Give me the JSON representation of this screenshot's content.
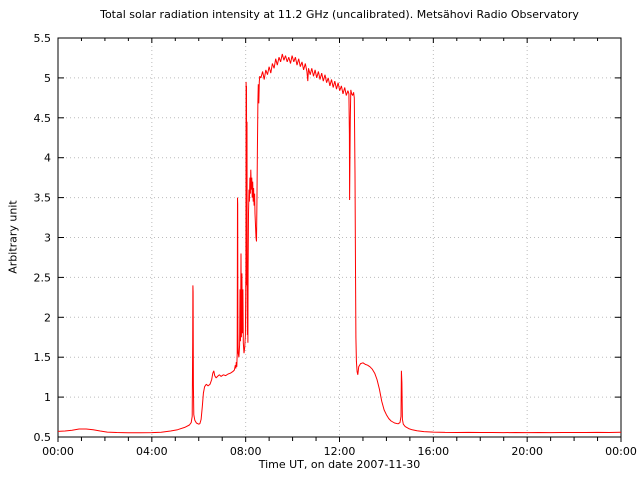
{
  "chart_data": {
    "type": "line",
    "title": "Total solar radiation intensity at 11.2 GHz (uncalibrated). Metsähovi Radio Observatory",
    "xlabel": "Time UT, on date 2007-11-30",
    "ylabel": "Arbitrary unit",
    "series_color": "#ff0000",
    "grid_color": "#bcbcbc",
    "grid": "dotted lines at major ticks, both axes",
    "legend": "none",
    "xlim_hours": [
      0,
      24
    ],
    "ylim": [
      0.5,
      5.5
    ],
    "x_major_ticks_hours": [
      0,
      4,
      8,
      12,
      16,
      20,
      24
    ],
    "x_tick_labels": [
      "00:00",
      "04:00",
      "08:00",
      "12:00",
      "16:00",
      "20:00",
      "00:00"
    ],
    "x_minor_step_hours": 1,
    "y_major_ticks": [
      0.5,
      1,
      1.5,
      2,
      2.5,
      3,
      3.5,
      4,
      4.5,
      5,
      5.5
    ],
    "y_tick_labels": [
      "0.5",
      "1",
      "1.5",
      "2",
      "2.5",
      "3",
      "3.5",
      "4",
      "4.5",
      "5",
      "5.5"
    ],
    "points_t_v": [
      [
        0,
        0.57
      ],
      [
        0.3,
        0.575
      ],
      [
        0.6,
        0.585
      ],
      [
        0.9,
        0.6
      ],
      [
        1.2,
        0.6
      ],
      [
        1.5,
        0.59
      ],
      [
        1.8,
        0.575
      ],
      [
        2.1,
        0.562
      ],
      [
        2.5,
        0.556
      ],
      [
        3.0,
        0.553
      ],
      [
        3.5,
        0.553
      ],
      [
        4.0,
        0.555
      ],
      [
        4.4,
        0.56
      ],
      [
        4.8,
        0.575
      ],
      [
        5.1,
        0.592
      ],
      [
        5.4,
        0.62
      ],
      [
        5.6,
        0.65
      ],
      [
        5.68,
        0.68
      ],
      [
        5.72,
        0.76
      ],
      [
        5.74,
        1.7
      ],
      [
        5.75,
        2.4
      ],
      [
        5.76,
        2.32
      ],
      [
        5.77,
        1.15
      ],
      [
        5.79,
        0.78
      ],
      [
        5.83,
        0.71
      ],
      [
        5.9,
        0.675
      ],
      [
        6.0,
        0.66
      ],
      [
        6.05,
        0.668
      ],
      [
        6.1,
        0.72
      ],
      [
        6.15,
        0.88
      ],
      [
        6.2,
        1.05
      ],
      [
        6.25,
        1.13
      ],
      [
        6.32,
        1.16
      ],
      [
        6.4,
        1.14
      ],
      [
        6.48,
        1.16
      ],
      [
        6.55,
        1.22
      ],
      [
        6.6,
        1.3
      ],
      [
        6.64,
        1.33
      ],
      [
        6.68,
        1.27
      ],
      [
        6.74,
        1.24
      ],
      [
        6.8,
        1.26
      ],
      [
        6.88,
        1.28
      ],
      [
        6.95,
        1.26
      ],
      [
        7.05,
        1.28
      ],
      [
        7.15,
        1.27
      ],
      [
        7.25,
        1.29
      ],
      [
        7.35,
        1.3
      ],
      [
        7.45,
        1.32
      ],
      [
        7.52,
        1.34
      ],
      [
        7.56,
        1.4
      ],
      [
        7.58,
        1.36
      ],
      [
        7.6,
        1.44
      ],
      [
        7.62,
        1.38
      ],
      [
        7.64,
        1.55
      ],
      [
        7.65,
        3.5
      ],
      [
        7.66,
        3.42
      ],
      [
        7.67,
        1.8
      ],
      [
        7.68,
        1.55
      ],
      [
        7.71,
        1.5
      ],
      [
        7.74,
        1.65
      ],
      [
        7.76,
        2.35
      ],
      [
        7.78,
        1.7
      ],
      [
        7.8,
        2.8
      ],
      [
        7.82,
        1.75
      ],
      [
        7.84,
        2.55
      ],
      [
        7.86,
        1.8
      ],
      [
        7.88,
        2.35
      ],
      [
        7.9,
        1.68
      ],
      [
        7.93,
        1.55
      ],
      [
        7.96,
        1.62
      ],
      [
        7.99,
        1.78
      ],
      [
        8.01,
        2.6
      ],
      [
        8.02,
        4.95
      ],
      [
        8.03,
        4.2
      ],
      [
        8.035,
        4.9
      ],
      [
        8.045,
        2.4
      ],
      [
        8.055,
        4.45
      ],
      [
        8.065,
        2.1
      ],
      [
        8.075,
        1.78
      ],
      [
        8.085,
        2.3
      ],
      [
        8.095,
        1.68
      ],
      [
        8.105,
        2.6
      ],
      [
        8.12,
        3.3
      ],
      [
        8.14,
        3.6
      ],
      [
        8.16,
        3.45
      ],
      [
        8.18,
        3.75
      ],
      [
        8.2,
        3.55
      ],
      [
        8.22,
        3.85
      ],
      [
        8.24,
        3.6
      ],
      [
        8.26,
        3.75
      ],
      [
        8.28,
        3.5
      ],
      [
        8.3,
        3.7
      ],
      [
        8.32,
        3.45
      ],
      [
        8.34,
        3.62
      ],
      [
        8.36,
        3.4
      ],
      [
        8.38,
        3.55
      ],
      [
        8.4,
        3.3
      ],
      [
        8.42,
        3.15
      ],
      [
        8.44,
        3.0
      ],
      [
        8.46,
        2.95
      ],
      [
        8.48,
        3.4
      ],
      [
        8.5,
        4.1
      ],
      [
        8.52,
        4.7
      ],
      [
        8.54,
        4.92
      ],
      [
        8.56,
        4.68
      ],
      [
        8.58,
        4.95
      ],
      [
        8.6,
        5.02
      ],
      [
        8.65,
        5.0
      ],
      [
        8.72,
        5.08
      ],
      [
        8.79,
        4.98
      ],
      [
        8.86,
        5.1
      ],
      [
        8.93,
        5.04
      ],
      [
        9.0,
        5.14
      ],
      [
        9.07,
        5.06
      ],
      [
        9.14,
        5.18
      ],
      [
        9.21,
        5.12
      ],
      [
        9.28,
        5.24
      ],
      [
        9.35,
        5.16
      ],
      [
        9.42,
        5.26
      ],
      [
        9.49,
        5.2
      ],
      [
        9.56,
        5.3
      ],
      [
        9.63,
        5.22
      ],
      [
        9.7,
        5.28
      ],
      [
        9.77,
        5.2
      ],
      [
        9.84,
        5.26
      ],
      [
        9.91,
        5.18
      ],
      [
        9.98,
        5.28
      ],
      [
        10.05,
        5.2
      ],
      [
        10.12,
        5.26
      ],
      [
        10.19,
        5.16
      ],
      [
        10.26,
        5.24
      ],
      [
        10.33,
        5.14
      ],
      [
        10.4,
        5.2
      ],
      [
        10.47,
        5.1
      ],
      [
        10.54,
        5.18
      ],
      [
        10.61,
        5.08
      ],
      [
        10.65,
        4.96
      ],
      [
        10.68,
        5.12
      ],
      [
        10.75,
        5.04
      ],
      [
        10.82,
        5.12
      ],
      [
        10.89,
        5.02
      ],
      [
        10.96,
        5.1
      ],
      [
        11.03,
        5.0
      ],
      [
        11.1,
        5.08
      ],
      [
        11.17,
        4.98
      ],
      [
        11.24,
        5.06
      ],
      [
        11.31,
        4.96
      ],
      [
        11.38,
        5.04
      ],
      [
        11.45,
        4.94
      ],
      [
        11.52,
        5.0
      ],
      [
        11.59,
        4.9
      ],
      [
        11.66,
        4.98
      ],
      [
        11.73,
        4.88
      ],
      [
        11.8,
        4.96
      ],
      [
        11.87,
        4.86
      ],
      [
        11.94,
        4.94
      ],
      [
        12.01,
        4.84
      ],
      [
        12.08,
        4.9
      ],
      [
        12.15,
        4.8
      ],
      [
        12.22,
        4.88
      ],
      [
        12.29,
        4.78
      ],
      [
        12.36,
        4.84
      ],
      [
        12.4,
        4.8
      ],
      [
        12.42,
        4.3
      ],
      [
        12.43,
        3.47
      ],
      [
        12.46,
        4.5
      ],
      [
        12.48,
        4.85
      ],
      [
        12.52,
        4.8
      ],
      [
        12.56,
        4.78
      ],
      [
        12.6,
        4.82
      ],
      [
        12.63,
        4.75
      ],
      [
        12.66,
        3.8
      ],
      [
        12.68,
        2.6
      ],
      [
        12.7,
        1.75
      ],
      [
        12.72,
        1.45
      ],
      [
        12.75,
        1.32
      ],
      [
        12.78,
        1.28
      ],
      [
        12.82,
        1.38
      ],
      [
        12.9,
        1.42
      ],
      [
        13.0,
        1.43
      ],
      [
        13.1,
        1.41
      ],
      [
        13.2,
        1.4
      ],
      [
        13.3,
        1.38
      ],
      [
        13.4,
        1.35
      ],
      [
        13.5,
        1.3
      ],
      [
        13.6,
        1.22
      ],
      [
        13.7,
        1.1
      ],
      [
        13.8,
        0.95
      ],
      [
        13.9,
        0.84
      ],
      [
        14.0,
        0.78
      ],
      [
        14.1,
        0.73
      ],
      [
        14.2,
        0.7
      ],
      [
        14.35,
        0.675
      ],
      [
        14.5,
        0.665
      ],
      [
        14.58,
        0.68
      ],
      [
        14.62,
        0.76
      ],
      [
        14.64,
        1.33
      ],
      [
        14.66,
        1.18
      ],
      [
        14.68,
        0.72
      ],
      [
        14.72,
        0.66
      ],
      [
        14.8,
        0.63
      ],
      [
        14.95,
        0.605
      ],
      [
        15.1,
        0.59
      ],
      [
        15.3,
        0.578
      ],
      [
        15.6,
        0.568
      ],
      [
        16.0,
        0.562
      ],
      [
        16.5,
        0.558
      ],
      [
        17.0,
        0.557
      ],
      [
        17.5,
        0.558
      ],
      [
        18.0,
        0.556
      ],
      [
        18.5,
        0.557
      ],
      [
        19.0,
        0.555
      ],
      [
        19.5,
        0.556
      ],
      [
        20.0,
        0.555
      ],
      [
        20.5,
        0.556
      ],
      [
        21.0,
        0.555
      ],
      [
        21.5,
        0.556
      ],
      [
        22.0,
        0.557
      ],
      [
        22.5,
        0.556
      ],
      [
        23.0,
        0.558
      ],
      [
        23.5,
        0.557
      ],
      [
        24.0,
        0.56
      ]
    ]
  }
}
